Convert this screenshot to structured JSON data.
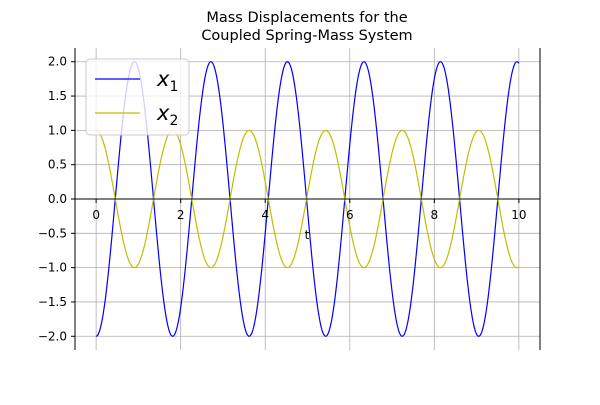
{
  "chart_data": {
    "type": "line",
    "title": "Mass Displacements for the\nCoupled Spring-Mass System",
    "title_lines": [
      "Mass Displacements for the",
      "Coupled Spring-Mass System"
    ],
    "xlabel": "t",
    "ylabel": "",
    "xlim": [
      -0.5,
      10.5
    ],
    "ylim": [
      -2.2,
      2.2
    ],
    "xticks": [
      0,
      2,
      4,
      6,
      8,
      10
    ],
    "xtick_labels": [
      "0",
      "2",
      "4",
      "6",
      "8",
      "10"
    ],
    "yticks": [
      -2.0,
      -1.5,
      -1.0,
      -0.5,
      0.0,
      0.5,
      1.0,
      1.5,
      2.0
    ],
    "ytick_labels": [
      "−2.0",
      "−1.5",
      "−1.0",
      "−0.5",
      "0.0",
      "0.5",
      "1.0",
      "1.5",
      "2.0"
    ],
    "grid": true,
    "legend_position": "upper-left",
    "series": [
      {
        "name": "x1",
        "legend_base": "x",
        "legend_sub": "1",
        "color": "#0000ff",
        "formula": "-2*cos(omega*t)",
        "amplitude": 2.0,
        "period": 1.81,
        "phase_start": "minimum",
        "t_range": [
          0,
          10
        ]
      },
      {
        "name": "x2",
        "legend_base": "x",
        "legend_sub": "2",
        "color": "#bfbf00",
        "formula": "cos(omega*t)",
        "amplitude": 1.0,
        "period": 1.81,
        "phase_start": "maximum",
        "t_range": [
          0,
          10
        ]
      }
    ]
  }
}
